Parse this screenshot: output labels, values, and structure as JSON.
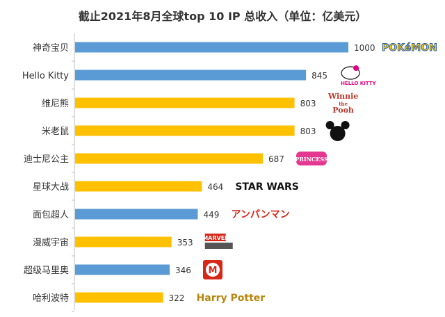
{
  "chart_data": {
    "type": "bar",
    "orientation": "horizontal",
    "title": "截止2021年8月全球top 10 IP 总收入（单位：亿美元）",
    "categories": [
      "神奇宝贝",
      "Hello Kitty",
      "维尼熊",
      "米老鼠",
      "迪士尼公主",
      "星球大战",
      "面包超人",
      "漫威宇宙",
      "超级马里奥",
      "哈利波特"
    ],
    "values": [
      1000,
      845,
      803,
      803,
      687,
      464,
      449,
      353,
      346,
      322
    ],
    "bar_colors": [
      "#5b9bd5",
      "#5b9bd5",
      "#ffc000",
      "#ffc000",
      "#ffc000",
      "#ffc000",
      "#5b9bd5",
      "#ffc000",
      "#5b9bd5",
      "#ffc000"
    ],
    "logos": [
      {
        "type": "text",
        "text": "POKéMON",
        "color": "#ffcb05",
        "stroke": "#2a5fa8"
      },
      {
        "type": "kitty",
        "text": "HELLO KITTY",
        "color": "#e4007f"
      },
      {
        "type": "text2",
        "lines": [
          "Winnie",
          "the",
          "Pooh"
        ],
        "color": "#c0392b"
      },
      {
        "type": "mickey",
        "color": "#111111"
      },
      {
        "type": "princess",
        "text": "PRINCESS",
        "color": "#e4378f"
      },
      {
        "type": "text",
        "text": "STAR WARS",
        "color": "#111111"
      },
      {
        "type": "text",
        "text": "アンパンマン",
        "color": "#d62718"
      },
      {
        "type": "marvel",
        "text": "MARVEL",
        "color": "#d62718"
      },
      {
        "type": "mario",
        "text": "M",
        "color": "#d62718"
      },
      {
        "type": "text",
        "text": "Harry Potter",
        "color": "#b8860b"
      }
    ],
    "xlim": [
      0,
      1000
    ],
    "grid": false,
    "legend": "none"
  }
}
